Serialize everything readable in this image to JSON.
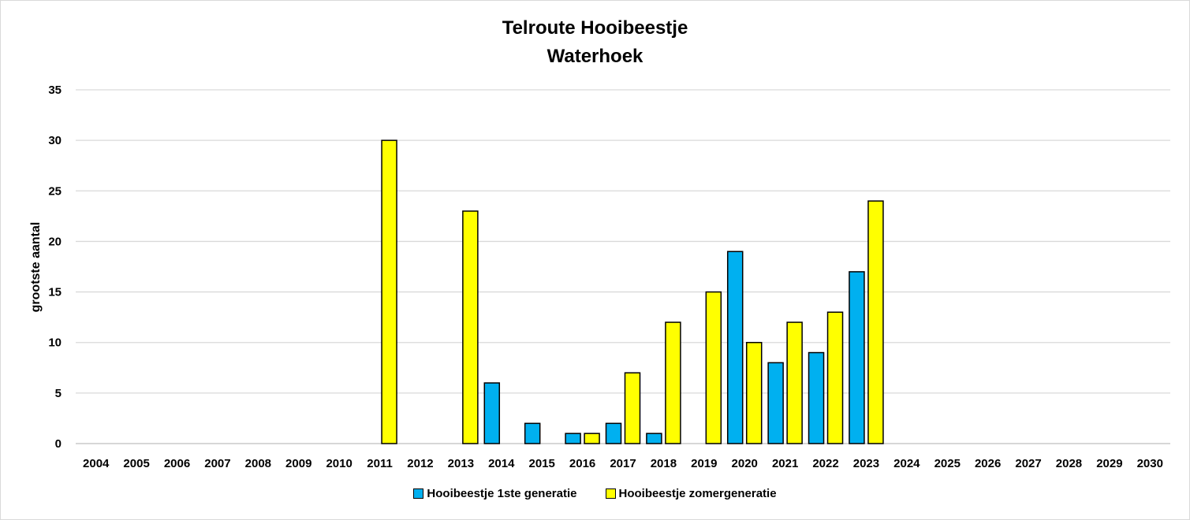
{
  "chart_data": {
    "type": "bar",
    "title": [
      "Telroute Hooibeestje",
      "Waterhoek"
    ],
    "ylabel": "grootste aantal",
    "xlabel": "",
    "ylim": [
      0,
      35
    ],
    "yticks": [
      0,
      5,
      10,
      15,
      20,
      25,
      30,
      35
    ],
    "grid": true,
    "legend_position": "bottom",
    "categories": [
      "2004",
      "2005",
      "2006",
      "2007",
      "2008",
      "2009",
      "2010",
      "2011",
      "2012",
      "2013",
      "2014",
      "2015",
      "2016",
      "2017",
      "2018",
      "2019",
      "2020",
      "2021",
      "2022",
      "2023",
      "2024",
      "2025",
      "2026",
      "2027",
      "2028",
      "2029",
      "2030"
    ],
    "series": [
      {
        "name": "Hooibeestje 1ste generatie",
        "color": "#00b0f0",
        "values": [
          null,
          null,
          null,
          null,
          null,
          null,
          null,
          null,
          null,
          null,
          6,
          2,
          1,
          2,
          1,
          null,
          19,
          8,
          9,
          17,
          null,
          null,
          null,
          null,
          null,
          null,
          null
        ]
      },
      {
        "name": "Hooibeestje zomergeneratie",
        "color": "#ffff00",
        "values": [
          null,
          null,
          null,
          null,
          null,
          null,
          null,
          30,
          null,
          23,
          null,
          null,
          1,
          7,
          12,
          15,
          10,
          12,
          13,
          24,
          null,
          null,
          null,
          null,
          null,
          null,
          null
        ]
      }
    ]
  }
}
